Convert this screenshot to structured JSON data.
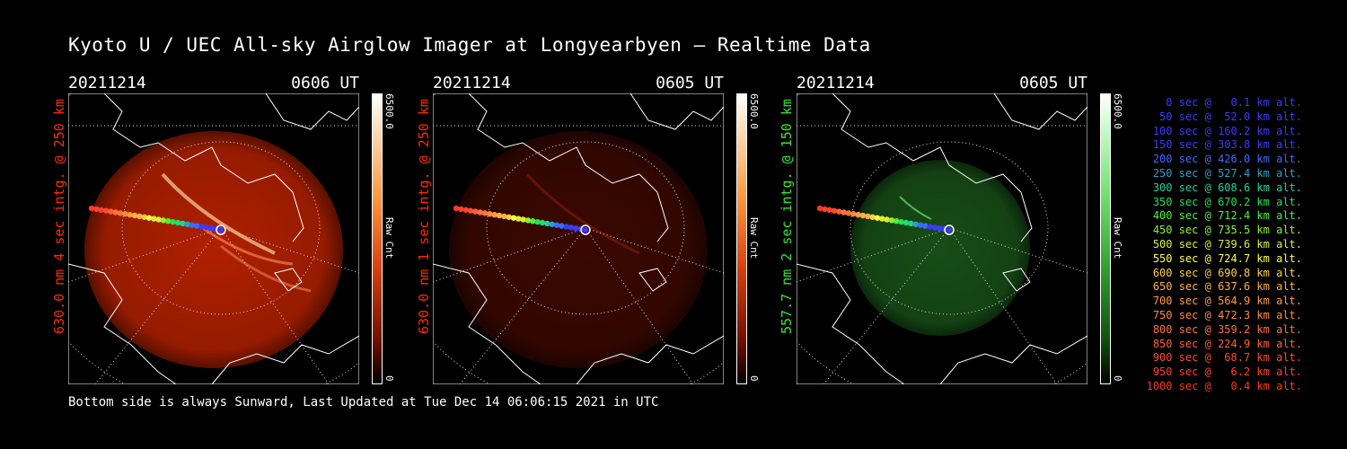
{
  "title": "Kyoto U / UEC All-sky Airglow Imager at Longyearbyen — Realtime Data",
  "footer": "Bottom side is always Sunward, Last Updated at Tue Dec 14 06:06:15 2021 in UTC",
  "panels": [
    {
      "date": "20211214",
      "time": "0606 UT",
      "ylabel": "630.0 nm 4 sec intg. @ 250 km",
      "label_color": "#ff2a00",
      "colorbar_max": "6500.0",
      "colorbar_label": "Raw Cnt",
      "colorbar_min": "0",
      "image_color": "#b02000"
    },
    {
      "date": "20211214",
      "time": "0605 UT",
      "ylabel": "630.0 nm 1 sec intg. @ 250 km",
      "label_color": "#ff2a00",
      "colorbar_max": "6500.0",
      "colorbar_label": "Raw Cnt",
      "colorbar_min": "0",
      "image_color": "#3a0800"
    },
    {
      "date": "20211214",
      "time": "0605 UT",
      "ylabel": "557.7 nm 2 sec intg. @ 150 km",
      "label_color": "#33e633",
      "colorbar_max": "6500.0",
      "colorbar_label": "Raw Cnt",
      "colorbar_min": "0",
      "image_color": "#174d17"
    }
  ],
  "legend": [
    {
      "text": "0 sec @   0.1 km alt.",
      "color": "#3b3bff"
    },
    {
      "text": "50 sec @  52.0 km alt.",
      "color": "#3b3bff"
    },
    {
      "text": "100 sec @ 160.2 km alt.",
      "color": "#3b3bff"
    },
    {
      "text": "150 sec @ 303.8 km alt.",
      "color": "#3b3bff"
    },
    {
      "text": "200 sec @ 426.0 km alt.",
      "color": "#3b6bff"
    },
    {
      "text": "250 sec @ 527.4 km alt.",
      "color": "#2aa0c8"
    },
    {
      "text": "300 sec @ 608.6 km alt.",
      "color": "#22d0a0"
    },
    {
      "text": "350 sec @ 670.2 km alt.",
      "color": "#22e060"
    },
    {
      "text": "400 sec @ 712.4 km alt.",
      "color": "#50f030"
    },
    {
      "text": "450 sec @ 735.5 km alt.",
      "color": "#90f030"
    },
    {
      "text": "500 sec @ 739.6 km alt.",
      "color": "#d8f030"
    },
    {
      "text": "550 sec @ 724.7 km alt.",
      "color": "#ffff40"
    },
    {
      "text": "600 sec @ 690.8 km alt.",
      "color": "#ffd040"
    },
    {
      "text": "650 sec @ 637.6 km alt.",
      "color": "#ffb040"
    },
    {
      "text": "700 sec @ 564.9 km alt.",
      "color": "#ff9a40"
    },
    {
      "text": "750 sec @ 472.3 km alt.",
      "color": "#ff8a40"
    },
    {
      "text": "800 sec @ 359.2 km alt.",
      "color": "#ff7040"
    },
    {
      "text": "850 sec @ 224.9 km alt.",
      "color": "#ff6030"
    },
    {
      "text": "900 sec @  68.7 km alt.",
      "color": "#ff4a30"
    },
    {
      "text": "950 sec @   6.2 km alt.",
      "color": "#ff4030"
    },
    {
      "text": "1000 sec @   0.4 km alt.",
      "color": "#ff3820"
    }
  ]
}
